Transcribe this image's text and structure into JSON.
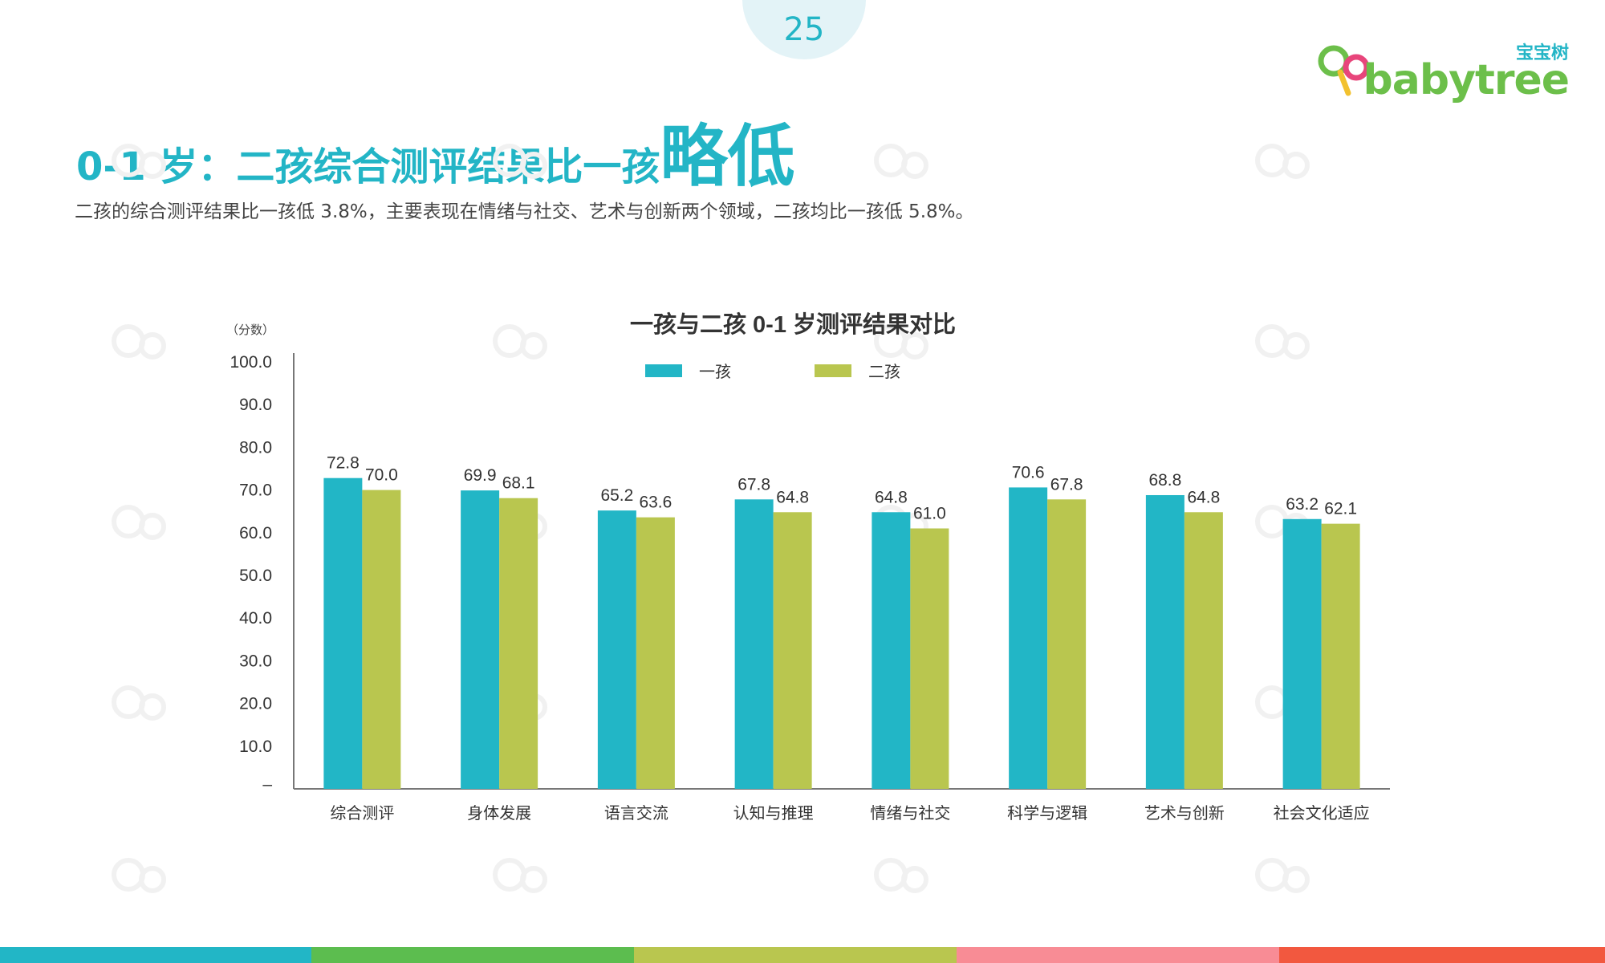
{
  "page": {
    "number": "25"
  },
  "logo": {
    "cn": "宝宝树",
    "en": "babytree"
  },
  "header": {
    "title_main": "0-1 岁：二孩综合测评结果比一孩",
    "title_emphasis": "略低",
    "subtitle": "二孩的综合测评结果比一孩低 3.8%，主要表现在情绪与社交、艺术与创新两个领域，二孩均比一孩低 5.8%。"
  },
  "colors": {
    "accent": "#23b5c6",
    "series1": "#22b6c6",
    "series2": "#b9c64f",
    "bottom_bar": [
      "#22b6c6",
      "#5cbd4f",
      "#b9c64f",
      "#f88c95",
      "#f2583f"
    ]
  },
  "chart_data": {
    "type": "bar",
    "title": "一孩与二孩 0-1 岁测评结果对比",
    "ylabel": "（分数）",
    "ylim": [
      0,
      100
    ],
    "yticks": [
      "–",
      "10.0",
      "20.0",
      "30.0",
      "40.0",
      "50.0",
      "60.0",
      "70.0",
      "80.0",
      "90.0",
      "100.0"
    ],
    "categories": [
      "综合测评",
      "身体发展",
      "语言交流",
      "认知与推理",
      "情绪与社交",
      "科学与逻辑",
      "艺术与创新",
      "社会文化适应"
    ],
    "series": [
      {
        "name": "一孩",
        "values": [
          72.8,
          69.9,
          65.2,
          67.8,
          64.8,
          70.6,
          68.8,
          63.2
        ],
        "labels": [
          "72.8",
          "69.9",
          "65.2",
          "67.8",
          "64.8",
          "70.6",
          "68.8",
          "63.2"
        ]
      },
      {
        "name": "二孩",
        "values": [
          70.0,
          68.1,
          63.6,
          64.8,
          61.0,
          67.8,
          64.8,
          62.1
        ],
        "labels": [
          "70.0",
          "68.1",
          "63.6",
          "64.8",
          "61.0",
          "67.8",
          "64.8",
          "62.1"
        ]
      }
    ],
    "legend": "top-center",
    "grid": false
  }
}
